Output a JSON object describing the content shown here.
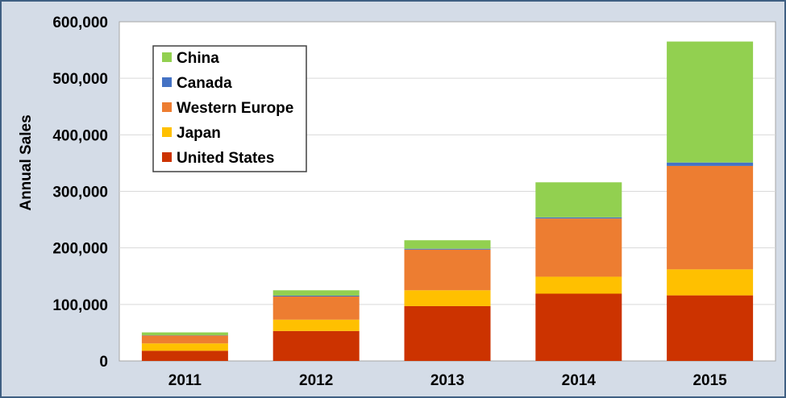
{
  "chart_data": {
    "type": "bar",
    "stacked": true,
    "title": "",
    "xlabel": "",
    "ylabel": "Annual Sales",
    "ylim": [
      0,
      600000
    ],
    "yticks": [
      0,
      100000,
      200000,
      300000,
      400000,
      500000,
      600000
    ],
    "ytick_labels": [
      "0",
      "100,000",
      "200,000",
      "300,000",
      "400,000",
      "500,000",
      "600,000"
    ],
    "categories": [
      "2011",
      "2012",
      "2013",
      "2014",
      "2015"
    ],
    "grid": "horizontal",
    "legend_position": "top-left",
    "series": [
      {
        "name": "United States",
        "color": "#cc3300",
        "values": [
          18000,
          53000,
          97000,
          119000,
          116000
        ]
      },
      {
        "name": "Japan",
        "color": "#ffc000",
        "values": [
          13000,
          20000,
          28000,
          30000,
          46000
        ]
      },
      {
        "name": "Western Europe",
        "color": "#ed7d31",
        "values": [
          14000,
          41000,
          72000,
          103000,
          183000
        ]
      },
      {
        "name": "Canada",
        "color": "#4472c4",
        "values": [
          500,
          1500,
          1500,
          2000,
          6000
        ]
      },
      {
        "name": "China",
        "color": "#92d050",
        "values": [
          5000,
          9500,
          15000,
          62000,
          214000
        ]
      }
    ]
  }
}
